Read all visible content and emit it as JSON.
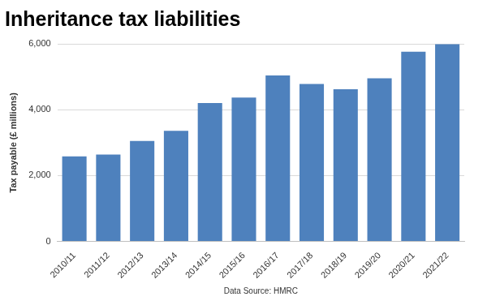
{
  "chart_data": {
    "type": "bar",
    "title": "Inheritance tax liabilities",
    "x_label": "Data Source: HMRC",
    "y_label": "Tax payable (£ millions)",
    "categories": [
      "2010/11",
      "2011/12",
      "2012/13",
      "2013/14",
      "2014/15",
      "2015/16",
      "2016/17",
      "2017/18",
      "2018/19",
      "2019/20",
      "2020/21",
      "2021/22"
    ],
    "values": [
      2580,
      2640,
      3050,
      3360,
      4200,
      4370,
      5040,
      4780,
      4620,
      4950,
      5760,
      5990
    ],
    "color": "#4e81bd",
    "ylim": [
      0,
      6000
    ],
    "yticks": [
      0,
      {
        "value": 2000,
        "label": "2,000"
      },
      {
        "value": 4000,
        "label": "4,000"
      },
      {
        "value": 6000,
        "label": "6,000"
      }
    ],
    "grid": true
  }
}
